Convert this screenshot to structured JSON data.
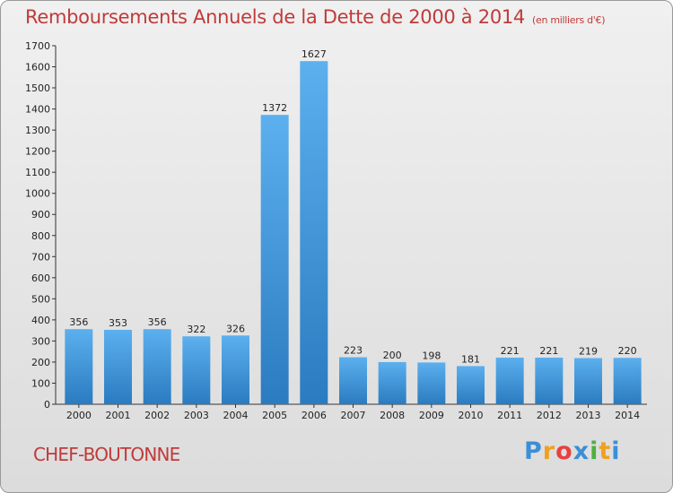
{
  "chart_data": {
    "type": "bar",
    "title": "Remboursements Annuels de la Dette de 2000 à 2014",
    "subtitle": "(en milliers d'€)",
    "categories": [
      "2000",
      "2001",
      "2002",
      "2003",
      "2004",
      "2005",
      "2006",
      "2007",
      "2008",
      "2009",
      "2010",
      "2011",
      "2012",
      "2013",
      "2014"
    ],
    "values": [
      356,
      353,
      356,
      322,
      326,
      1372,
      1627,
      223,
      200,
      198,
      181,
      221,
      221,
      219,
      220
    ],
    "ylim": [
      0,
      1700
    ],
    "yticks": [
      0,
      100,
      200,
      300,
      400,
      500,
      600,
      700,
      800,
      900,
      1000,
      1100,
      1200,
      1300,
      1400,
      1500,
      1600,
      1700
    ],
    "xlabel": "",
    "ylabel": "",
    "grid": false,
    "bar_color": "#4da3e6",
    "bar_color_dark": "#2a7bc0"
  },
  "footer": {
    "city": "CHEF-BOUTONNE",
    "logo": {
      "letters": [
        "P",
        "r",
        "o",
        "x",
        "i",
        "t",
        "i"
      ],
      "colors": [
        "#3a8fd8",
        "#f0a020",
        "#e84040",
        "#3a8fd8",
        "#50b040",
        "#f0a020",
        "#3a8fd8"
      ]
    }
  }
}
